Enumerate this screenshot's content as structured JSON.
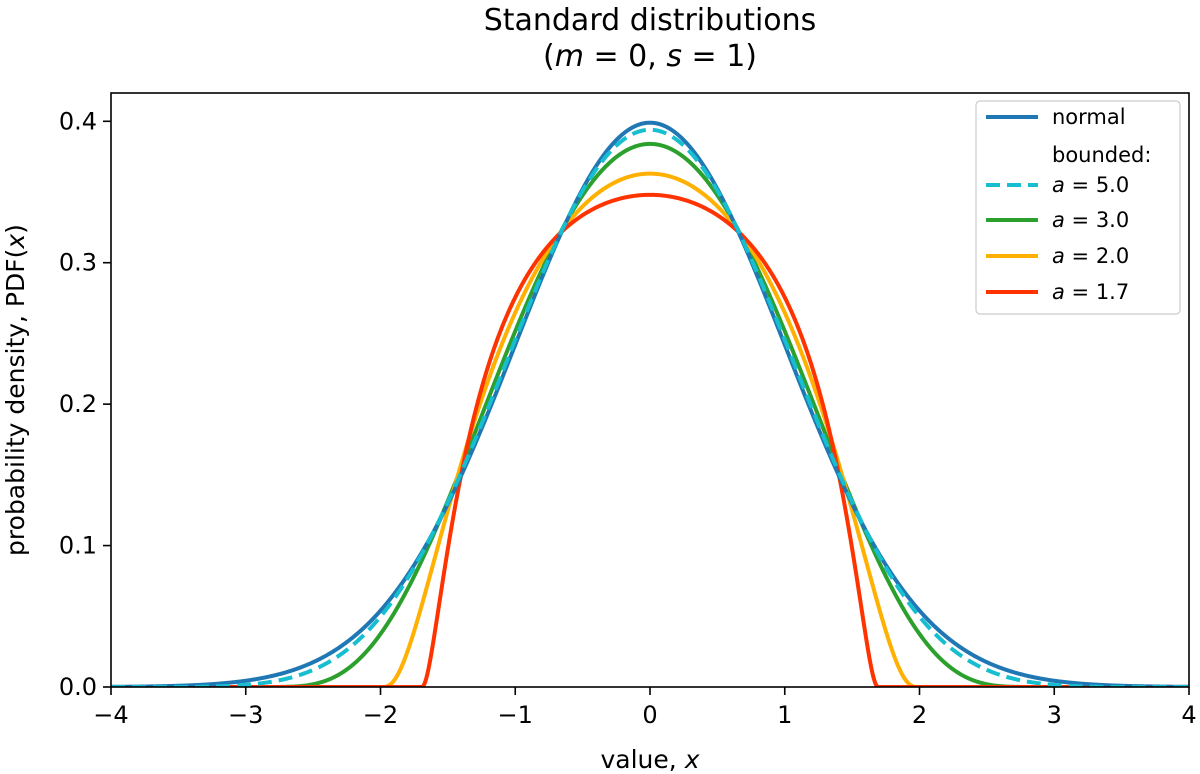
{
  "chart_data": {
    "type": "line",
    "title": "Standard distributions",
    "subtitle": {
      "open": "(",
      "m_sym": "m",
      "m_eq": " = 0, ",
      "s_sym": "s",
      "s_eq": " = 1)"
    },
    "xlabel": {
      "text": "value, ",
      "sym": "x"
    },
    "ylabel": {
      "text": "probability density, PDF(",
      "sym": "x",
      "close": ")"
    },
    "xlim": [
      -4,
      4
    ],
    "ylim": [
      0,
      0.42
    ],
    "x_ticks": [
      -4,
      -3,
      -2,
      -1,
      0,
      1,
      2,
      3,
      4
    ],
    "x_tick_labels": [
      "−4",
      "−3",
      "−2",
      "−1",
      "0",
      "1",
      "2",
      "3",
      "4"
    ],
    "y_ticks": [
      0.0,
      0.1,
      0.2,
      0.3,
      0.4
    ],
    "y_tick_labels": [
      "0.0",
      "0.1",
      "0.2",
      "0.3",
      "0.4"
    ],
    "legend_position": "top-right",
    "legend_subheading": "bounded:",
    "series": [
      {
        "id": "normal",
        "legend_label": "normal",
        "legend_sym": "",
        "legend_value": "",
        "color": "#1f77b4",
        "style": "solid",
        "kind": "normal",
        "peak": 0.399
      },
      {
        "id": "a50",
        "legend_label": "",
        "legend_sym": "a",
        "legend_value": " = 5.0",
        "color": "#17becf",
        "style": "dashed",
        "kind": "bounded",
        "a": 5.0,
        "peak": 0.394
      },
      {
        "id": "a30",
        "legend_label": "",
        "legend_sym": "a",
        "legend_value": " = 3.0",
        "color": "#2ca02c",
        "style": "solid",
        "kind": "bounded",
        "a": 3.0,
        "peak": 0.384
      },
      {
        "id": "a20",
        "legend_label": "",
        "legend_sym": "a",
        "legend_value": " = 2.0",
        "color": "#ffb000",
        "style": "solid",
        "kind": "bounded",
        "a": 2.0,
        "peak": 0.363
      },
      {
        "id": "a17",
        "legend_label": "",
        "legend_sym": "a",
        "legend_value": " = 1.7",
        "color": "#ff3300",
        "style": "solid",
        "kind": "bounded",
        "a": 1.7,
        "peak": 0.348
      }
    ]
  }
}
